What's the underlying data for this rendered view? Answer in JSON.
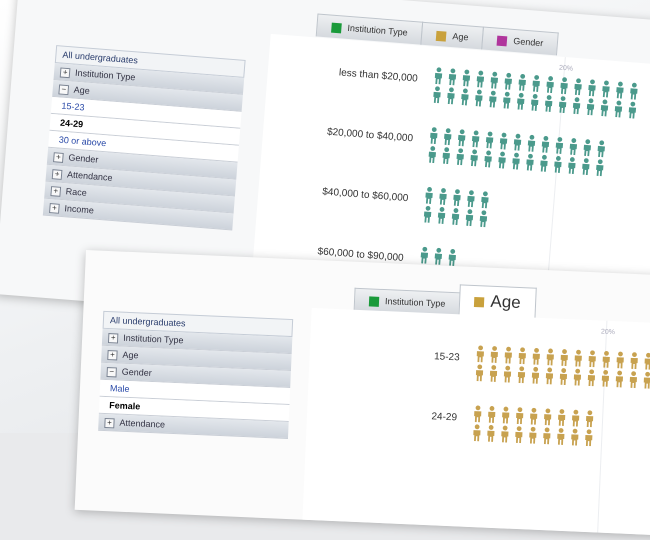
{
  "colors": {
    "institution_type": "#1a9a3a",
    "age": "#c9a13c",
    "gender": "#b0359c",
    "teal_icon": "#4b9a8c",
    "gold_icon": "#c8a250"
  },
  "top_panel": {
    "tabs": [
      {
        "label": "Institution Type",
        "swatch": "institution_type",
        "active": false
      },
      {
        "label": "Age",
        "swatch": "age",
        "active": false
      },
      {
        "label": "Gender",
        "swatch": "gender",
        "active": false
      }
    ],
    "scale_label": "20%",
    "sidebar": [
      {
        "label": "All undergraduates",
        "kind": "head"
      },
      {
        "label": "Institution Type",
        "kind": "group",
        "box": "+"
      },
      {
        "label": "Age",
        "kind": "group",
        "box": "−"
      },
      {
        "label": "15-23",
        "kind": "sub"
      },
      {
        "label": "24-29",
        "kind": "sub",
        "selected": true
      },
      {
        "label": "30 or above",
        "kind": "sub"
      },
      {
        "label": "Gender",
        "kind": "group",
        "box": "+"
      },
      {
        "label": "Attendance",
        "kind": "group",
        "box": "+"
      },
      {
        "label": "Race",
        "kind": "group",
        "box": "+"
      },
      {
        "label": "Income",
        "kind": "group",
        "box": "+"
      }
    ],
    "rows": [
      {
        "label": "less than $20,000",
        "icons": 30
      },
      {
        "label": "$20,000 to $40,000",
        "icons": 26
      },
      {
        "label": "$40,000 to $60,000",
        "icons": 10
      },
      {
        "label": "$60,000 to $90,000",
        "icons": 5
      }
    ]
  },
  "bottom_panel": {
    "tabs": [
      {
        "label": "Institution Type",
        "swatch": "institution_type",
        "active": false
      },
      {
        "label": "Age",
        "swatch": "age",
        "active": true
      }
    ],
    "scale_label": "20%",
    "sidebar": [
      {
        "label": "All undergraduates",
        "kind": "head"
      },
      {
        "label": "Institution Type",
        "kind": "group",
        "box": "+"
      },
      {
        "label": "Age",
        "kind": "group",
        "box": "+"
      },
      {
        "label": "Gender",
        "kind": "group",
        "box": "−"
      },
      {
        "label": "Male",
        "kind": "sub"
      },
      {
        "label": "Female",
        "kind": "sub",
        "selected": true
      },
      {
        "label": "Attendance",
        "kind": "group",
        "box": "+"
      }
    ],
    "rows": [
      {
        "label": "15-23",
        "icons": 28
      },
      {
        "label": "24-29",
        "icons": 18
      }
    ]
  }
}
